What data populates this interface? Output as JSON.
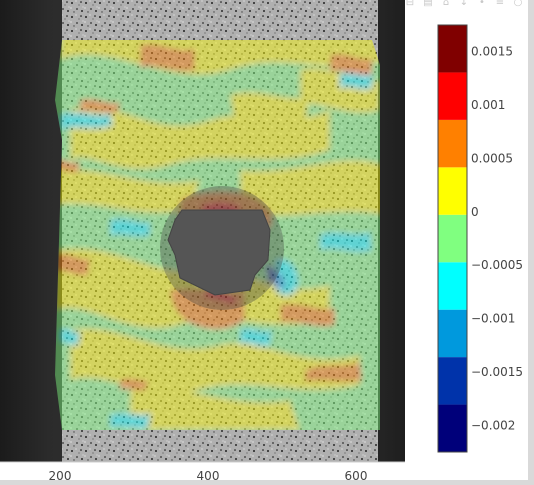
{
  "toolbar": {
    "buttons": [
      {
        "name": "camera-icon",
        "glyph": "▣"
      },
      {
        "name": "zoom-icon",
        "glyph": "⌕"
      },
      {
        "name": "pan-icon",
        "glyph": "✚"
      },
      {
        "name": "lasso-icon",
        "glyph": "◇"
      },
      {
        "name": "box-select-icon",
        "glyph": "□"
      },
      {
        "name": "zoom-in-icon",
        "glyph": "⊞"
      },
      {
        "name": "zoom-out-icon",
        "glyph": "⊟"
      },
      {
        "name": "autoscale-icon",
        "glyph": "▤"
      },
      {
        "name": "reset-axes-icon",
        "glyph": "⌂"
      },
      {
        "name": "spike-lines-icon",
        "glyph": "↕"
      },
      {
        "name": "hover-closest-icon",
        "glyph": "•"
      },
      {
        "name": "hover-compare-icon",
        "glyph": "≡"
      },
      {
        "name": "plotly-logo-icon",
        "glyph": "○"
      }
    ]
  },
  "chart_data": {
    "type": "heatmap",
    "title": "",
    "xlabel": "",
    "ylabel": "",
    "xlim": [
      0,
      667
    ],
    "x_ticks": [
      200,
      400,
      600
    ],
    "x_tick_labels": [
      "200",
      "400",
      "600"
    ],
    "specimen_x_range": [
      210,
      635
    ],
    "hole_center_x": 408,
    "grid": false,
    "legend_position": "right",
    "colorbar": {
      "min": -0.00225,
      "max": 0.00175,
      "tick_values": [
        0.0015,
        0.001,
        0.0005,
        0,
        -0.0005,
        -0.001,
        -0.0015,
        -0.002
      ],
      "tick_labels": [
        "0.0015",
        "0.001",
        "0.0005",
        "0",
        "−0.0005",
        "−0.001",
        "−0.0015",
        "−0.002"
      ],
      "colors": [
        "#00007a",
        "#0033aa",
        "#0099dd",
        "#00ffff",
        "#80ff80",
        "#ffff00",
        "#ff8000",
        "#ff0000",
        "#800000"
      ]
    },
    "background": "grayscale speckle image of test specimen",
    "overlay_opacity": 0.45
  }
}
